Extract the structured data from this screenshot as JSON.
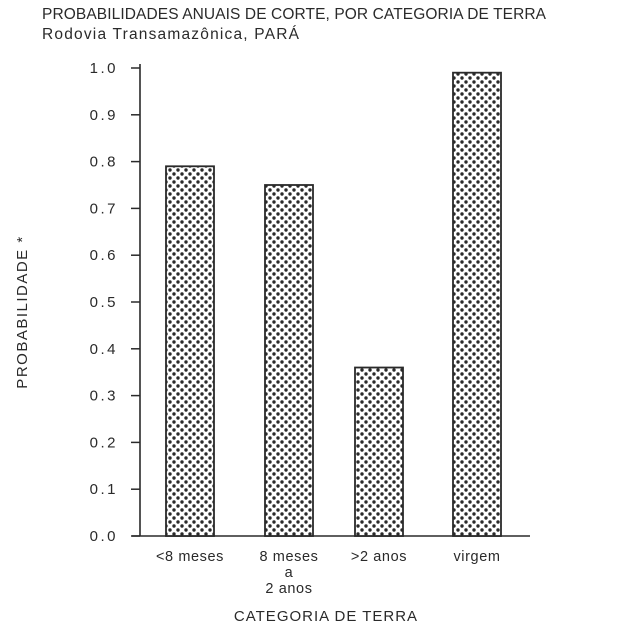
{
  "title": "PROBABILIDADES ANUAIS DE CORTE, POR CATEGORIA DE TERRA",
  "subtitle": "Rodovia Transamazônica, PARÁ",
  "chart_data": {
    "type": "bar",
    "title": "PROBABILIDADES ANUAIS DE CORTE, POR CATEGORIA DE TERRA",
    "subtitle": "Rodovia Transamazônica, PARÁ",
    "categories": [
      "<8 meses",
      "8 meses a 2 anos",
      ">2 anos",
      "virgem"
    ],
    "category_label_lines": [
      [
        "<8 meses"
      ],
      [
        "8 meses",
        "a",
        "2 anos"
      ],
      [
        ">2 anos"
      ],
      [
        "virgem"
      ]
    ],
    "values": [
      0.79,
      0.75,
      0.36,
      0.99
    ],
    "xlabel": "CATEGORIA DE TERRA",
    "ylabel": "PROBABILIDADE *",
    "ylim": [
      0.0,
      1.0
    ],
    "yticks": [
      "0.0",
      "0.1",
      "0.2",
      "0.3",
      "0.4",
      "0.5",
      "0.6",
      "0.7",
      "0.8",
      "0.9",
      "1.0"
    ],
    "grid": false,
    "bar_pattern": "dotted",
    "colors": {
      "ink": "#2a2a2a",
      "bar_fill": "#ffffff"
    }
  }
}
